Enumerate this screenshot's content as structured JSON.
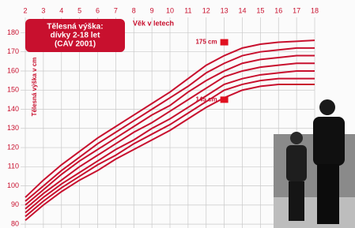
{
  "chart_data": {
    "type": "line",
    "title_lines": [
      "Tělesná výška:",
      "dívky 2-18 let",
      "(CAV 2001)"
    ],
    "x_label": "Věk v letech",
    "y_label": "Tělesná výška v cm",
    "x": [
      2,
      3,
      4,
      5,
      6,
      7,
      8,
      9,
      10,
      11,
      12,
      13,
      14,
      15,
      16,
      17,
      18
    ],
    "xlim": [
      2,
      18
    ],
    "xticks": [
      2,
      3,
      4,
      5,
      6,
      7,
      8,
      9,
      10,
      11,
      12,
      13,
      14,
      15,
      16,
      17,
      18
    ],
    "ylim": [
      78,
      188
    ],
    "yticks": [
      80,
      90,
      100,
      110,
      120,
      130,
      140,
      150,
      160,
      170,
      180
    ],
    "grid": true,
    "series": [
      {
        "color": "#c8102e",
        "values": [
          94,
          103,
          111,
          118,
          125,
          131,
          137,
          143,
          149,
          156,
          163,
          168,
          172,
          174,
          175,
          175.5,
          176
        ]
      },
      {
        "color": "#c8102e",
        "values": [
          92,
          100,
          108,
          115,
          122,
          128,
          134,
          140,
          146,
          152,
          159,
          164,
          168,
          170,
          171,
          172,
          172
        ]
      },
      {
        "color": "#c8102e",
        "values": [
          90,
          98,
          106,
          113,
          119,
          125,
          131,
          137,
          142,
          149,
          155,
          160,
          164,
          166,
          167,
          168,
          168
        ]
      },
      {
        "color": "#c8102e",
        "values": [
          88,
          96,
          103,
          110,
          116,
          122,
          128,
          133,
          139,
          145,
          151,
          157,
          160,
          162,
          163,
          164,
          164
        ]
      },
      {
        "color": "#c8102e",
        "values": [
          86,
          94,
          101,
          107,
          113,
          119,
          124,
          130,
          135,
          141,
          147,
          153,
          156,
          158,
          159,
          160,
          160
        ]
      },
      {
        "color": "#c8102e",
        "values": [
          84,
          92,
          99,
          105,
          111,
          116,
          122,
          127,
          132,
          138,
          144,
          150,
          153,
          155,
          156,
          156,
          156
        ]
      },
      {
        "color": "#c8102e",
        "values": [
          82,
          90,
          97,
          103,
          108,
          114,
          119,
          124,
          129,
          135,
          141,
          146,
          150,
          152,
          153,
          153,
          153
        ]
      }
    ],
    "annotations": [
      {
        "text": "175 cm",
        "x": 13,
        "y": 175
      },
      {
        "text": "145 cm",
        "x": 13,
        "y": 145
      }
    ]
  }
}
